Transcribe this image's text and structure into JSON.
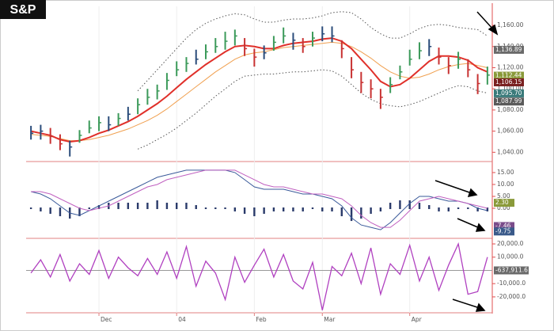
{
  "logo": "S&P",
  "chart_data": [
    {
      "type": "ohlc",
      "high": [
        1065,
        1066,
        1063,
        1057,
        1051,
        1061,
        1070,
        1074,
        1074,
        1077,
        1083,
        1091,
        1100,
        1104,
        1115,
        1126,
        1130,
        1137,
        1142,
        1148,
        1154,
        1156,
        1148,
        1138,
        1141,
        1150,
        1158,
        1153,
        1148,
        1154,
        1159,
        1159,
        1146,
        1130,
        1116,
        1109,
        1100,
        1111,
        1122,
        1137,
        1144,
        1147,
        1139,
        1130,
        1135,
        1128,
        1114,
        1121
      ],
      "low": [
        1052,
        1052,
        1048,
        1042,
        1036,
        1049,
        1058,
        1060,
        1060,
        1065,
        1070,
        1076,
        1085,
        1090,
        1099,
        1112,
        1116,
        1123,
        1128,
        1134,
        1137,
        1141,
        1131,
        1121,
        1128,
        1136,
        1143,
        1137,
        1134,
        1140,
        1145,
        1144,
        1129,
        1110,
        1096,
        1091,
        1081,
        1096,
        1109,
        1122,
        1128,
        1131,
        1123,
        1114,
        1119,
        1111,
        1095,
        1104
      ],
      "close": [
        1058,
        1060,
        1055,
        1048,
        1045,
        1056,
        1063,
        1068,
        1066,
        1072,
        1076,
        1085,
        1092,
        1098,
        1108,
        1118,
        1124,
        1128,
        1135,
        1140,
        1145,
        1150,
        1138,
        1130,
        1134,
        1144,
        1150,
        1146,
        1140,
        1148,
        1152,
        1150,
        1138,
        1118,
        1106,
        1100,
        1092,
        1104,
        1116,
        1128,
        1136,
        1140,
        1130,
        1122,
        1128,
        1118,
        1105,
        1113
      ],
      "bar_colors": {
        "up": "#3c9a5a",
        "down": "#c83232",
        "flat": "#2a4c7a"
      },
      "lines": [
        {
          "color": "#f0a050",
          "width": 1,
          "dash": false,
          "values": [
            1057,
            1056,
            1055,
            1053,
            1051,
            1051,
            1052,
            1054,
            1056,
            1059,
            1062,
            1066,
            1070,
            1075,
            1081,
            1088,
            1095,
            1102,
            1109,
            1116,
            1122,
            1128,
            1132,
            1134,
            1135,
            1137,
            1139,
            1140,
            1141,
            1142,
            1143,
            1144,
            1143,
            1140,
            1135,
            1129,
            1122,
            1116,
            1112,
            1110,
            1111,
            1114,
            1118,
            1121,
            1123,
            1124,
            1122,
            1120
          ]
        },
        {
          "color": "#e0302a",
          "width": 2,
          "dash": false,
          "values": [
            1060,
            1058,
            1056,
            1052,
            1050,
            1051,
            1054,
            1058,
            1061,
            1065,
            1069,
            1074,
            1080,
            1086,
            1093,
            1101,
            1109,
            1116,
            1123,
            1129,
            1135,
            1140,
            1141,
            1140,
            1138,
            1138,
            1141,
            1143,
            1144,
            1145,
            1147,
            1148,
            1145,
            1138,
            1128,
            1118,
            1107,
            1102,
            1104,
            1110,
            1118,
            1126,
            1131,
            1131,
            1130,
            1127,
            1120,
            1116
          ]
        },
        {
          "color": "#555555",
          "width": 1,
          "dash": true,
          "values": [
            null,
            null,
            null,
            null,
            null,
            null,
            null,
            null,
            null,
            null,
            null,
            1098,
            1108,
            1118,
            1128,
            1138,
            1148,
            1156,
            1162,
            1166,
            1169,
            1171,
            1170,
            1166,
            1163,
            1163,
            1165,
            1166,
            1166,
            1167,
            1169,
            1172,
            1173,
            1172,
            1166,
            1158,
            1152,
            1148,
            1148,
            1152,
            1157,
            1160,
            1161,
            1160,
            1158,
            1157,
            1156,
            1150
          ]
        },
        {
          "color": "#555555",
          "width": 1,
          "dash": true,
          "values": [
            null,
            null,
            null,
            null,
            null,
            null,
            null,
            null,
            null,
            null,
            null,
            1043,
            1047,
            1052,
            1057,
            1063,
            1070,
            1077,
            1085,
            1093,
            1100,
            1107,
            1112,
            1113,
            1114,
            1114,
            1115,
            1116,
            1116,
            1117,
            1118,
            1117,
            1112,
            1104,
            1096,
            1090,
            1086,
            1084,
            1083,
            1085,
            1088,
            1092,
            1096,
            1100,
            1103,
            1102,
            1098,
            1096
          ]
        }
      ],
      "ylim": [
        1032,
        1178
      ],
      "yticks": [
        {
          "value": 1040,
          "label": "1,040.00"
        },
        {
          "value": 1060,
          "label": "1,060.00"
        },
        {
          "value": 1080,
          "label": "1,080.00"
        },
        {
          "value": 1100,
          "label": "1,100.00"
        },
        {
          "value": 1120,
          "label": "1,120.00"
        },
        {
          "value": 1140,
          "label": "1,140.00"
        },
        {
          "value": 1160,
          "label": "1,160.00"
        }
      ],
      "last_values": [
        {
          "value": 1136.89,
          "label": "1,136.89",
          "color": "#6a6a6a"
        },
        {
          "value": 1112.44,
          "label": "1,112.44",
          "color": "#8a9a3a"
        },
        {
          "value": 1106.15,
          "label": "1,106.15",
          "color": "#7a2020"
        },
        {
          "value": 1095.7,
          "label": "1,095.70",
          "color": "#3a7a7a"
        },
        {
          "value": 1087.99,
          "label": "1,087.99",
          "color": "#5a5a5a"
        }
      ]
    },
    {
      "type": "macd",
      "lines": [
        {
          "color": "#3a5a9a",
          "values": [
            7,
            6,
            4,
            1,
            -2,
            -3,
            -1,
            1,
            3,
            5,
            7,
            9,
            11,
            13,
            14,
            15,
            16,
            16,
            16,
            16,
            16,
            15,
            12,
            9,
            8,
            8,
            8,
            7,
            6,
            6,
            5,
            4,
            1,
            -4,
            -7,
            -8,
            -9,
            -6,
            -2,
            2,
            5,
            5,
            4,
            3,
            3,
            2,
            0,
            -1
          ]
        },
        {
          "color": "#c060c0",
          "values": [
            7,
            7,
            6,
            4,
            2,
            0,
            -1,
            0,
            1,
            3,
            5,
            7,
            9,
            10,
            12,
            13,
            14,
            15,
            16,
            16,
            16,
            16,
            14,
            12,
            10,
            9,
            9,
            8,
            7,
            6,
            6,
            5,
            4,
            1,
            -3,
            -6,
            -8,
            -8,
            -5,
            -1,
            3,
            4,
            5,
            4,
            3,
            2,
            1,
            0
          ]
        }
      ],
      "histogram": {
        "color": "#2a3a6a",
        "values": [
          0,
          -1,
          -2,
          -3,
          -4,
          -3,
          0,
          1,
          2,
          2,
          2,
          2,
          2,
          3,
          2,
          2,
          2,
          1,
          0,
          0,
          0,
          -1,
          -2,
          -3,
          -2,
          -1,
          -1,
          -1,
          -1,
          0,
          -1,
          -1,
          -3,
          -5,
          -4,
          -2,
          -1,
          2,
          3,
          3,
          2,
          1,
          -1,
          -1,
          0,
          0,
          -1,
          -1
        ]
      },
      "ylim": [
        -12.3,
        18.3
      ],
      "yticks": [
        {
          "value": 0,
          "label": "0.00"
        },
        {
          "value": 5,
          "label": "5.00"
        },
        {
          "value": 10,
          "label": "10.00"
        },
        {
          "value": 15,
          "label": "15.00"
        }
      ],
      "last_values": [
        {
          "value": 2.3,
          "label": "2.30",
          "color": "#8a9a3a"
        },
        {
          "value": -7.46,
          "label": "-7.46",
          "color": "#7a4c8a"
        },
        {
          "value": -9.75,
          "label": "-9.75",
          "color": "#3a5a8a"
        }
      ]
    },
    {
      "type": "line",
      "categories": [
        null,
        null,
        null,
        null,
        null,
        null,
        null,
        "Dec",
        null,
        null,
        null,
        null,
        null,
        null,
        null,
        "04",
        null,
        null,
        null,
        null,
        null,
        null,
        null,
        "Feb",
        null,
        null,
        null,
        null,
        null,
        null,
        "Mar",
        null,
        null,
        null,
        null,
        null,
        null,
        null,
        null,
        "Apr",
        null,
        null,
        null,
        null,
        null,
        null,
        null,
        null
      ],
      "color": "#b040c0",
      "values": [
        -2000,
        8000,
        -5000,
        12000,
        -8000,
        5000,
        -3000,
        15000,
        -6000,
        10000,
        2000,
        -4000,
        9000,
        -3000,
        14000,
        -6000,
        18000,
        -12000,
        7000,
        -2000,
        -22000,
        10000,
        -9000,
        4000,
        16000,
        -5000,
        12000,
        -8000,
        -14000,
        6000,
        -30000,
        3000,
        -4000,
        13000,
        -10000,
        17000,
        -18000,
        5000,
        -3000,
        19000,
        -8000,
        10000,
        -15000,
        4000,
        20000,
        -18000,
        -16000,
        10000
      ],
      "ylim": [
        -32000,
        23000
      ],
      "yticks": [
        {
          "value": -20000,
          "label": "-20,000.0"
        },
        {
          "value": -10000,
          "label": "-10,000.0"
        },
        {
          "value": 10000,
          "label": "10,000.0"
        },
        {
          "value": 20000,
          "label": "20,000.0"
        }
      ],
      "last_label": "-637,911.6"
    }
  ]
}
